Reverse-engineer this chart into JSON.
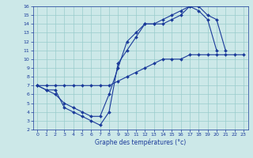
{
  "title": "Graphe des températures (°c)",
  "background_color": "#cce8e8",
  "grid_color": "#99cccc",
  "line_color": "#1a3a9a",
  "xlim": [
    -0.5,
    23.5
  ],
  "ylim": [
    2,
    16
  ],
  "xticks": [
    0,
    1,
    2,
    3,
    4,
    5,
    6,
    7,
    8,
    9,
    10,
    11,
    12,
    13,
    14,
    15,
    16,
    17,
    18,
    19,
    20,
    21,
    22,
    23
  ],
  "yticks": [
    2,
    3,
    4,
    5,
    6,
    7,
    8,
    9,
    10,
    11,
    12,
    13,
    14,
    15,
    16
  ],
  "series": [
    {
      "x": [
        0,
        1,
        2,
        3,
        4,
        5,
        6,
        7,
        8,
        9,
        10,
        11,
        12,
        13,
        14,
        15,
        16,
        17,
        18,
        19,
        20,
        21
      ],
      "y": [
        7,
        6.5,
        6.5,
        4.5,
        4.0,
        3.5,
        3.0,
        2.5,
        4.0,
        9.5,
        11.0,
        12.5,
        14.0,
        14.0,
        14.0,
        14.5,
        15.0,
        16.0,
        16.0,
        15.0,
        14.5,
        11.0
      ]
    },
    {
      "x": [
        0,
        1,
        2,
        3,
        4,
        5,
        6,
        7,
        8,
        9,
        10,
        11,
        12,
        13,
        14,
        15,
        16,
        17,
        18,
        19,
        20
      ],
      "y": [
        7,
        6.5,
        6.0,
        5.0,
        4.5,
        4.0,
        3.5,
        3.5,
        6.0,
        9.0,
        12.0,
        13.0,
        14.0,
        14.0,
        14.5,
        15.0,
        15.5,
        16.0,
        15.5,
        14.5,
        11.0
      ]
    },
    {
      "x": [
        0,
        1,
        2,
        3,
        4,
        5,
        6,
        7,
        8,
        9,
        10,
        11,
        12,
        13,
        14,
        15,
        16,
        17,
        18,
        19,
        20,
        21,
        22,
        23
      ],
      "y": [
        7,
        7,
        7,
        7,
        7,
        7,
        7,
        7,
        7,
        7.5,
        8.0,
        8.5,
        9.0,
        9.5,
        10.0,
        10.0,
        10.0,
        10.5,
        10.5,
        10.5,
        10.5,
        10.5,
        10.5,
        10.5
      ]
    }
  ]
}
